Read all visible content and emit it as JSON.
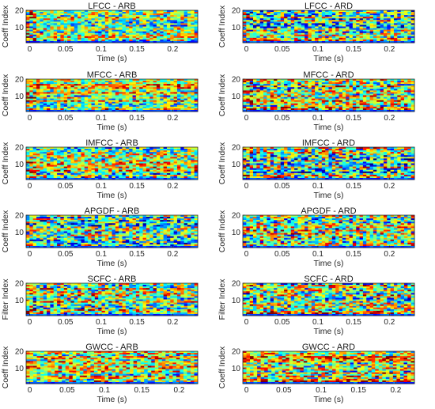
{
  "chart_data": [
    {
      "type": "heatmap",
      "title": "LFCC - ARB",
      "xlabel": "Time (s)",
      "ylabel": "Coeff Index",
      "xlim": [
        -0.005,
        0.235
      ],
      "ylim": [
        1,
        20
      ],
      "xticks": [
        "0",
        "0.05",
        "0.1",
        "0.15",
        "0.2"
      ],
      "yticks": [
        "10",
        "20"
      ],
      "cols": 50,
      "rows": 20,
      "colormap": "jet",
      "seed": 11,
      "base": 0.48,
      "contrast": 1.0,
      "early_hot": 0.3
    },
    {
      "type": "heatmap",
      "title": "LFCC - ARD",
      "xlabel": "Time (s)",
      "ylabel": "Coeff Index",
      "xlim": [
        -0.005,
        0.235
      ],
      "ylim": [
        1,
        20
      ],
      "xticks": [
        "0",
        "0.05",
        "0.1",
        "0.15",
        "0.2"
      ],
      "yticks": [
        "10",
        "20"
      ],
      "cols": 50,
      "rows": 20,
      "colormap": "jet",
      "seed": 23,
      "base": 0.5,
      "contrast": 1.1,
      "early_hot": 0.25
    },
    {
      "type": "heatmap",
      "title": "MFCC - ARB",
      "xlabel": "Time (s)",
      "ylabel": "Coeff Index",
      "xlim": [
        -0.005,
        0.235
      ],
      "ylim": [
        1,
        20
      ],
      "xticks": [
        "0",
        "0.05",
        "0.1",
        "0.15",
        "0.2"
      ],
      "yticks": [
        "10",
        "20"
      ],
      "cols": 50,
      "rows": 20,
      "colormap": "jet",
      "seed": 37,
      "base": 0.56,
      "contrast": 0.9,
      "early_hot": 0.2
    },
    {
      "type": "heatmap",
      "title": "MFCC - ARD",
      "xlabel": "Time (s)",
      "ylabel": "Coeff Index",
      "xlim": [
        -0.005,
        0.235
      ],
      "ylim": [
        1,
        20
      ],
      "xticks": [
        "0",
        "0.05",
        "0.1",
        "0.15",
        "0.2"
      ],
      "yticks": [
        "10",
        "20"
      ],
      "cols": 50,
      "rows": 20,
      "colormap": "jet",
      "seed": 41,
      "base": 0.55,
      "contrast": 1.15,
      "early_hot": 0.2
    },
    {
      "type": "heatmap",
      "title": "IMFCC - ARB",
      "xlabel": "Time (s)",
      "ylabel": "Coeff Index",
      "xlim": [
        -0.005,
        0.235
      ],
      "ylim": [
        1,
        20
      ],
      "xticks": [
        "0",
        "0.05",
        "0.1",
        "0.15",
        "0.2"
      ],
      "yticks": [
        "10",
        "20"
      ],
      "cols": 50,
      "rows": 20,
      "colormap": "jet",
      "seed": 53,
      "base": 0.52,
      "contrast": 1.05,
      "early_hot": 0.25
    },
    {
      "type": "heatmap",
      "title": "IMFCC - ARD",
      "xlabel": "Time (s)",
      "ylabel": "Coeff Index",
      "xlim": [
        -0.005,
        0.235
      ],
      "ylim": [
        1,
        20
      ],
      "xticks": [
        "0",
        "0.05",
        "0.1",
        "0.15",
        "0.2"
      ],
      "yticks": [
        "10",
        "20"
      ],
      "cols": 50,
      "rows": 20,
      "colormap": "jet",
      "seed": 67,
      "base": 0.45,
      "contrast": 1.25,
      "early_hot": 0.2
    },
    {
      "type": "heatmap",
      "title": "APGDF - ARB",
      "xlabel": "Time (s)",
      "ylabel": "Coeff Index",
      "xlim": [
        -0.005,
        0.235
      ],
      "ylim": [
        1,
        20
      ],
      "xticks": [
        "0",
        "0.05",
        "0.1",
        "0.15",
        "0.2"
      ],
      "yticks": [
        "10",
        "20"
      ],
      "cols": 50,
      "rows": 20,
      "colormap": "jet",
      "seed": 71,
      "base": 0.42,
      "contrast": 1.2,
      "early_hot": 0.0
    },
    {
      "type": "heatmap",
      "title": "APGDF - ARD",
      "xlabel": "Time (s)",
      "ylabel": "Coeff Index",
      "xlim": [
        -0.005,
        0.235
      ],
      "ylim": [
        1,
        20
      ],
      "xticks": [
        "0",
        "0.05",
        "0.1",
        "0.15",
        "0.2"
      ],
      "yticks": [
        "10",
        "20"
      ],
      "cols": 50,
      "rows": 20,
      "colormap": "jet",
      "seed": 83,
      "base": 0.5,
      "contrast": 1.15,
      "early_hot": 0.1
    },
    {
      "type": "heatmap",
      "title": "SCFC - ARB",
      "xlabel": "Time (s)",
      "ylabel": "Filter Index",
      "xlim": [
        -0.005,
        0.235
      ],
      "ylim": [
        1,
        20
      ],
      "xticks": [
        "0",
        "0.05",
        "0.1",
        "0.15",
        "0.2"
      ],
      "yticks": [
        "10",
        "20"
      ],
      "cols": 50,
      "rows": 20,
      "colormap": "jet",
      "seed": 97,
      "base": 0.52,
      "contrast": 1.15,
      "early_hot": 0.15
    },
    {
      "type": "heatmap",
      "title": "SCFC - ARD",
      "xlabel": "Time (s)",
      "ylabel": "Filter Index",
      "xlim": [
        -0.005,
        0.235
      ],
      "ylim": [
        1,
        20
      ],
      "xticks": [
        "0",
        "0.05",
        "0.1",
        "0.15",
        "0.2"
      ],
      "yticks": [
        "10",
        "20"
      ],
      "cols": 50,
      "rows": 20,
      "colormap": "jet",
      "seed": 101,
      "base": 0.52,
      "contrast": 1.2,
      "early_hot": 0.15
    },
    {
      "type": "heatmap",
      "title": "GWCC - ARB",
      "xlabel": "Time (s)",
      "ylabel": "Coeff Index",
      "xlim": [
        -0.005,
        0.225
      ],
      "ylim": [
        1,
        20
      ],
      "xticks": [
        "0",
        "0.05",
        "0.1",
        "0.15",
        "0.2"
      ],
      "yticks": [
        "10",
        "20"
      ],
      "cols": 48,
      "rows": 20,
      "colormap": "jet",
      "seed": 113,
      "base": 0.54,
      "contrast": 1.0,
      "early_hot": 0.0
    },
    {
      "type": "heatmap",
      "title": "GWCC - ARD",
      "xlabel": "Time (s)",
      "ylabel": "Coeff Index",
      "xlim": [
        -0.005,
        0.225
      ],
      "ylim": [
        1,
        20
      ],
      "xticks": [
        "0",
        "0.05",
        "0.1",
        "0.15",
        "0.2"
      ],
      "yticks": [
        "10",
        "20"
      ],
      "cols": 48,
      "rows": 20,
      "colormap": "jet",
      "seed": 127,
      "base": 0.58,
      "contrast": 1.05,
      "early_hot": 0.1
    }
  ]
}
